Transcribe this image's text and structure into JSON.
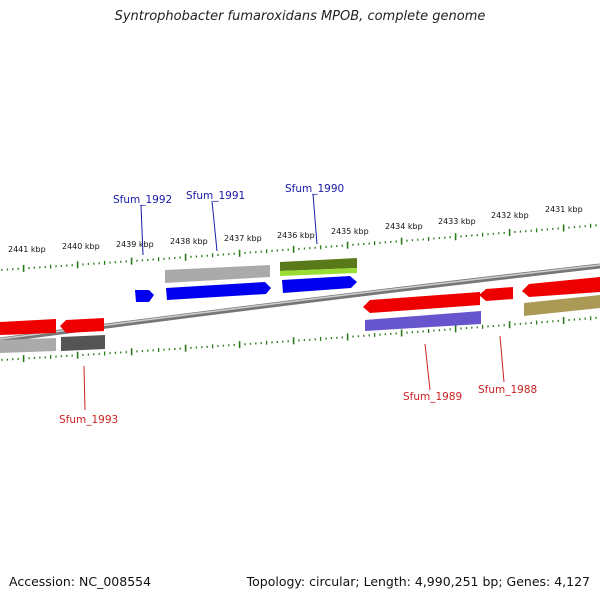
{
  "title": "Syntrophobacter fumaroxidans MPOB, complete genome",
  "footer": {
    "accession": "Accession: NC_008554",
    "topology": "Topology: circular; Length: 4,990,251 bp; Genes: 4,127"
  },
  "kbp_ticks": [
    "2441 kbp",
    "2440 kbp",
    "2439 kbp",
    "2438 kbp",
    "2437 kbp",
    "2436 kbp",
    "2435 kbp",
    "2434 kbp",
    "2433 kbp",
    "2432 kbp",
    "2431 kbp"
  ],
  "gene_labels": [
    {
      "name": "Sfum_1992",
      "strand": "forward",
      "color": "#1a1aaa"
    },
    {
      "name": "Sfum_1991",
      "strand": "forward",
      "color": "#1a1aaa"
    },
    {
      "name": "Sfum_1990",
      "strand": "forward",
      "color": "#1a1aaa"
    },
    {
      "name": "Sfum_1993",
      "strand": "reverse",
      "color": "#cc2222"
    },
    {
      "name": "Sfum_1989",
      "strand": "reverse",
      "color": "#cc2222"
    },
    {
      "name": "Sfum_1988",
      "strand": "reverse",
      "color": "#cc2222"
    }
  ],
  "colors": {
    "backbone": "#808080",
    "tick_green": "#2a7a1a",
    "forward_cds": "#0000ee",
    "reverse_cds": "#ee0000",
    "grey_feature": "#aaaaaa",
    "dark_grey_feature": "#555555",
    "olive_feature": "#5a7a1a",
    "lime_feature": "#99dd33",
    "purple_feature": "#6655cc",
    "khaki_feature": "#aa9a55"
  }
}
